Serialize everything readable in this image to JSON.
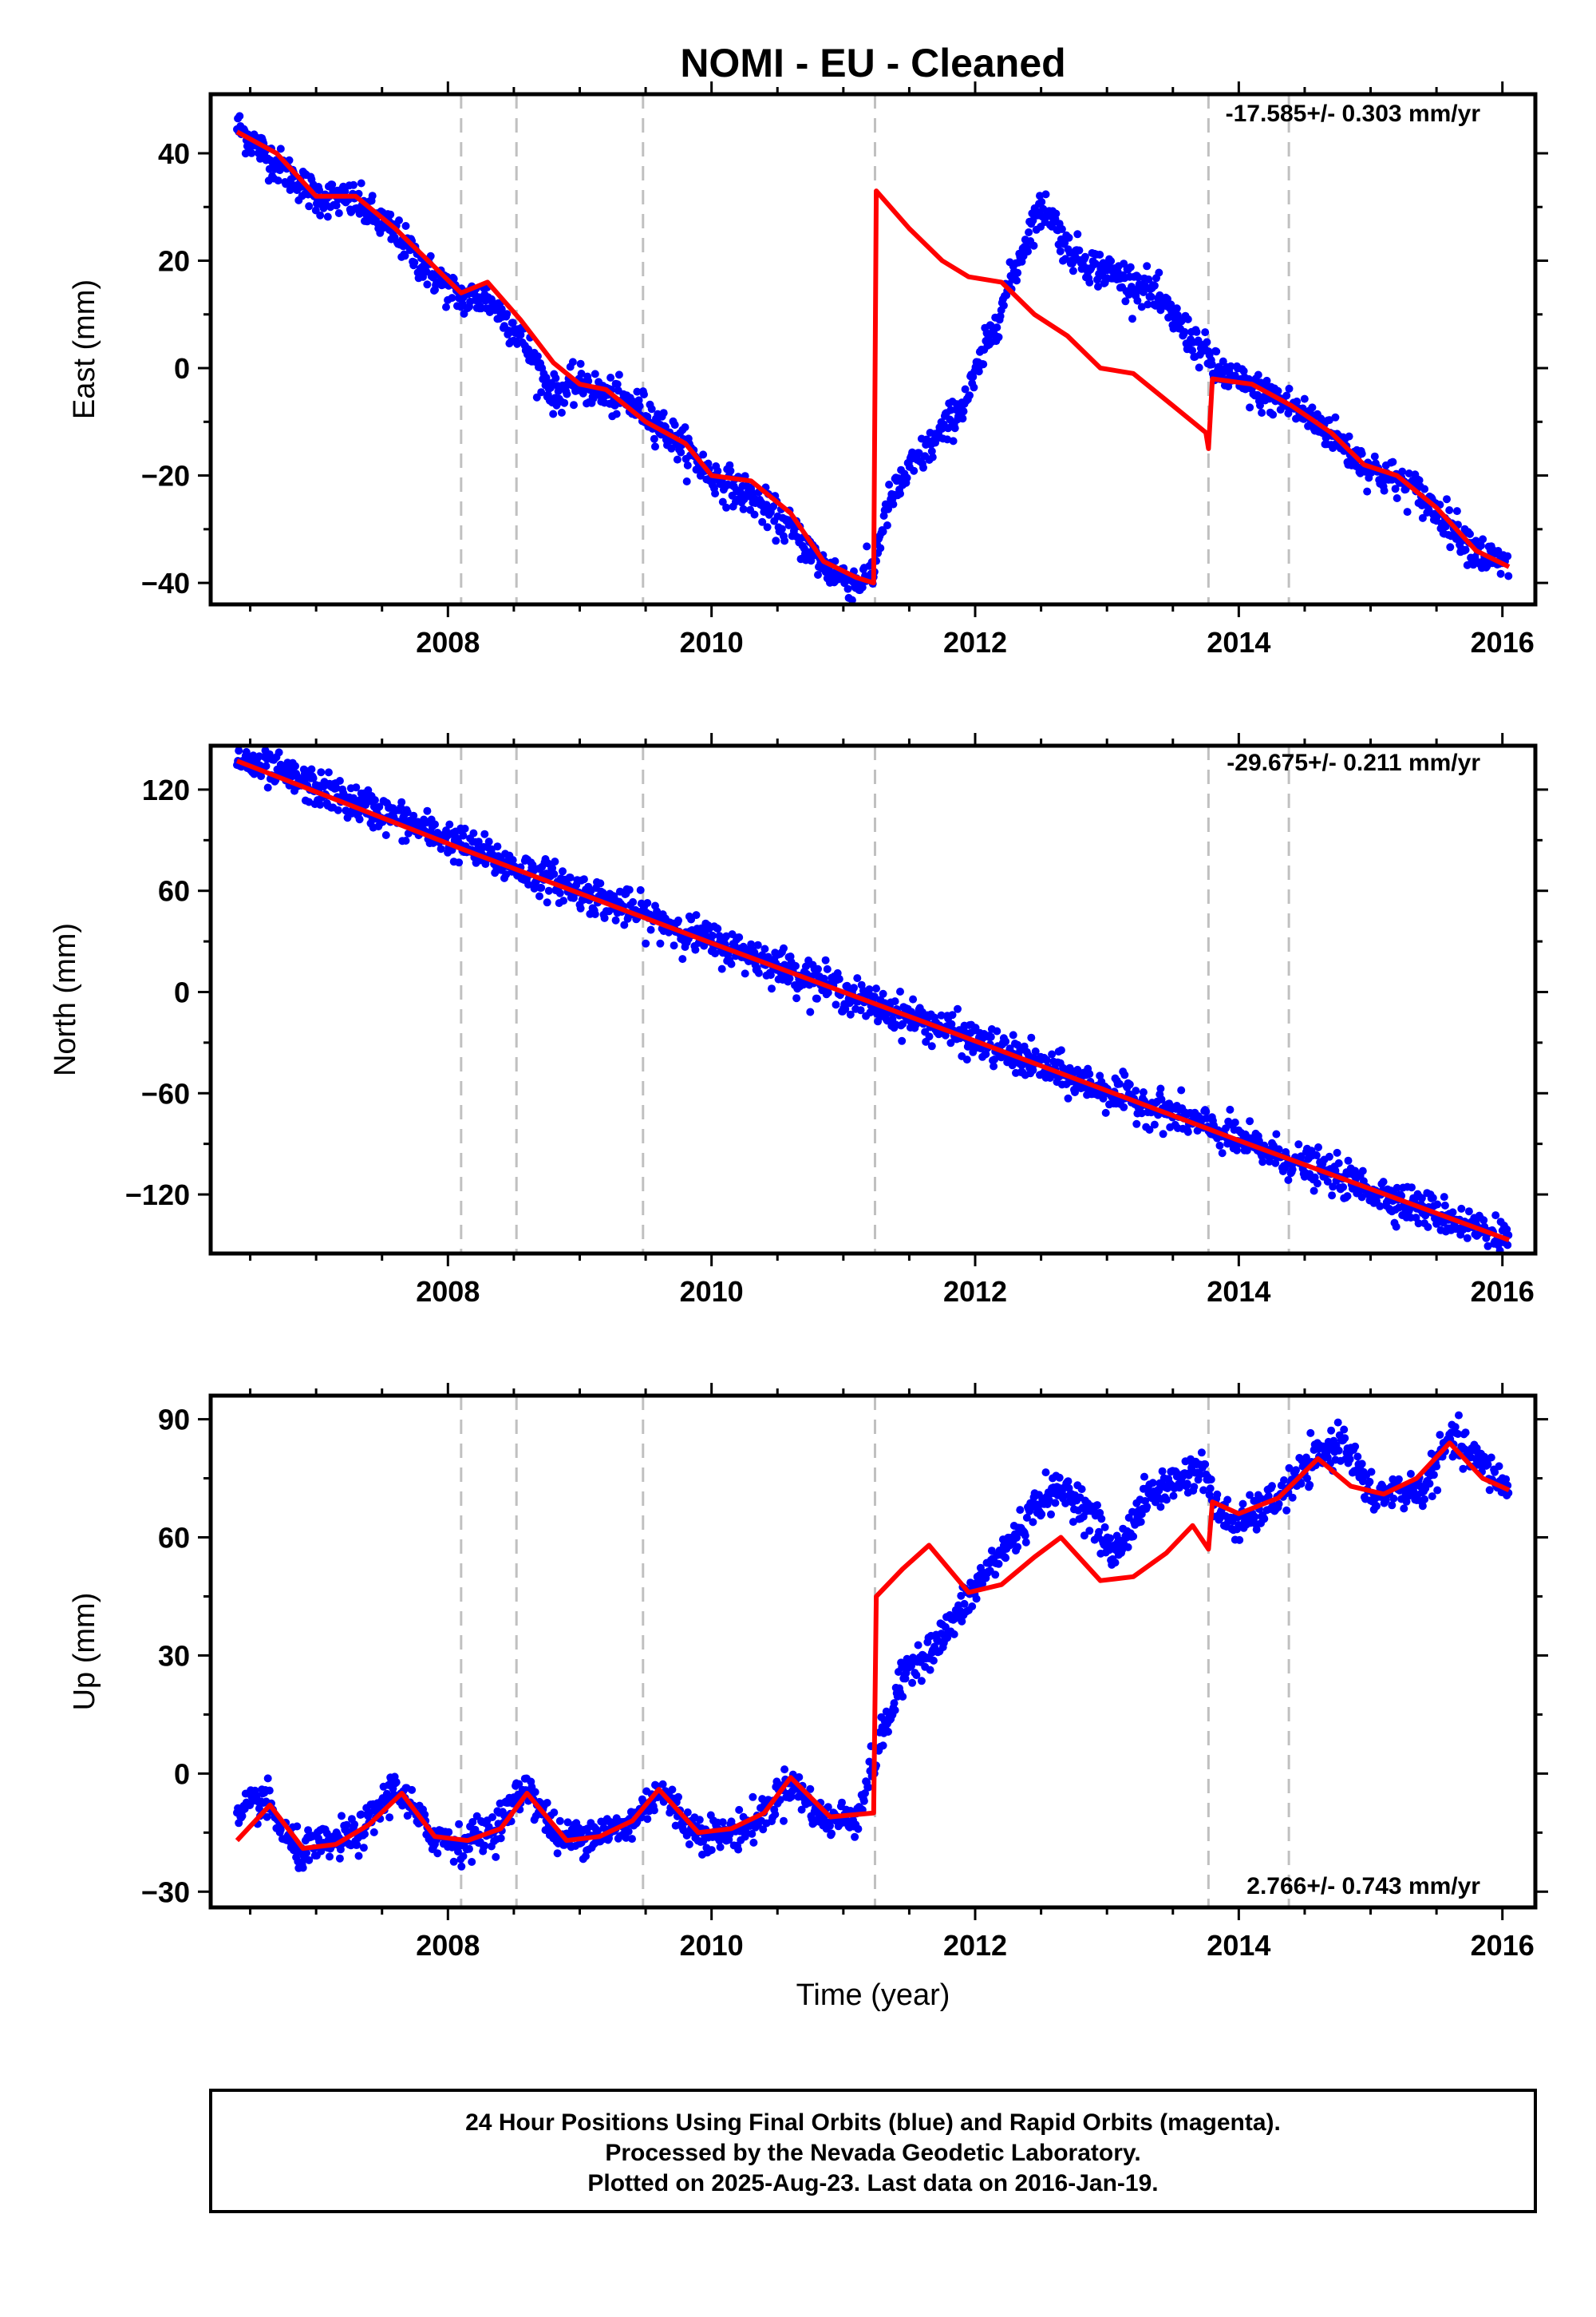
{
  "title": "NOMI  - EU - Cleaned",
  "caption": {
    "lines": [
      "24 Hour Positions Using Final Orbits (blue) and Rapid Orbits (magenta).",
      "Processed by the Nevada Geodetic Laboratory.",
      "Plotted on 2025-Aug-23. Last data on 2016-Jan-19."
    ]
  },
  "colors": {
    "final_orbits": "#0000ff",
    "model_fit": "#ff0000",
    "discontinuity_lines": "#c0c0c0",
    "frame": "#000000"
  },
  "chart_data": [
    {
      "type": "scatter",
      "panel": "east",
      "ylabel": "East (mm)",
      "xlabel": "",
      "rate": "-17.585+/- 0.303 mm/yr",
      "xlim": [
        2006.2,
        2016.25
      ],
      "ylim": [
        -44,
        51
      ],
      "yticks": [
        -40,
        -20,
        0,
        20,
        40
      ],
      "ytick_labels": [
        "−40",
        "−20",
        "0",
        "20",
        "40"
      ],
      "xticks": [
        2008,
        2010,
        2012,
        2014,
        2016
      ],
      "xtick_labels": [
        "2008",
        "2010",
        "2012",
        "2014",
        "2016"
      ],
      "discontinuities": [
        2008.1,
        2008.52,
        2009.48,
        2011.24,
        2013.77,
        2014.38
      ],
      "observations": {
        "x": [
          2006.4,
          2006.7,
          2007.0,
          2007.3,
          2007.6,
          2007.85,
          2008.1,
          2008.3,
          2008.55,
          2008.8,
          2009.0,
          2009.2,
          2009.5,
          2009.8,
          2010.0,
          2010.3,
          2010.6,
          2010.85,
          2011.1,
          2011.23,
          2011.27,
          2011.35,
          2011.5,
          2011.75,
          2011.95,
          2012.1,
          2012.3,
          2012.45,
          2012.55,
          2012.7,
          2012.9,
          2013.1,
          2013.3,
          2013.55,
          2013.77,
          2013.8,
          2014.1,
          2014.4,
          2014.7,
          2014.9,
          2015.1,
          2015.3,
          2015.6,
          2015.85,
          2016.05
        ],
        "y": [
          45,
          38,
          32,
          31,
          25,
          18,
          13,
          13,
          6,
          -5,
          -3,
          -5,
          -8,
          -15,
          -20,
          -24,
          -30,
          -37,
          -40,
          -38,
          -32,
          -25,
          -19,
          -12,
          -5,
          5,
          18,
          28,
          30,
          22,
          19,
          17,
          15,
          8,
          2,
          0,
          -4,
          -7,
          -12,
          -17,
          -20,
          -22,
          -29,
          -35,
          -37
        ]
      },
      "model": {
        "x": [
          2006.4,
          2006.7,
          2007.0,
          2007.3,
          2007.6,
          2007.85,
          2008.1,
          2008.3,
          2008.55,
          2008.8,
          2009.0,
          2009.2,
          2009.5,
          2009.8,
          2010.0,
          2010.3,
          2010.6,
          2010.85,
          2011.1,
          2011.23,
          2011.25,
          2011.5,
          2011.75,
          2011.95,
          2012.2,
          2012.45,
          2012.7,
          2012.95,
          2013.2,
          2013.5,
          2013.75,
          2013.77,
          2013.8,
          2014.1,
          2014.4,
          2014.7,
          2014.95,
          2015.2,
          2015.5,
          2015.8,
          2016.05
        ],
        "y": [
          44,
          40,
          32,
          32,
          26,
          20,
          14,
          16,
          9,
          1,
          -3,
          -4,
          -10,
          -14,
          -20,
          -21,
          -27,
          -36,
          -39,
          -40,
          33,
          26,
          20,
          17,
          16,
          10,
          6,
          0,
          -1,
          -7,
          -12,
          -15,
          -2,
          -3,
          -7,
          -12,
          -18,
          -20,
          -26,
          -34,
          -37
        ]
      }
    },
    {
      "type": "scatter",
      "panel": "north",
      "ylabel": "North (mm)",
      "xlabel": "",
      "rate": "-29.675+/- 0.211 mm/yr",
      "xlim": [
        2006.2,
        2016.25
      ],
      "ylim": [
        -155,
        146
      ],
      "yticks": [
        -120,
        -60,
        0,
        60,
        120
      ],
      "ytick_labels": [
        "−120",
        "−60",
        "0",
        "60",
        "120"
      ],
      "xticks": [
        2008,
        2010,
        2012,
        2014,
        2016
      ],
      "xtick_labels": [
        "2008",
        "2010",
        "2012",
        "2014",
        "2016"
      ],
      "discontinuities": [
        2008.1,
        2008.52,
        2009.48,
        2011.24,
        2013.77,
        2014.38
      ],
      "observations": {
        "x": [
          2006.4,
          2006.8,
          2007.2,
          2007.6,
          2008.0,
          2008.4,
          2008.8,
          2009.2,
          2009.6,
          2010.0,
          2010.4,
          2010.8,
          2011.2,
          2011.6,
          2012.0,
          2012.4,
          2012.8,
          2013.2,
          2013.6,
          2014.0,
          2014.4,
          2014.8,
          2015.2,
          2015.6,
          2016.05
        ],
        "y": [
          138,
          127,
          115,
          103,
          91,
          77,
          66,
          54,
          42,
          30,
          19,
          7,
          -7,
          -17,
          -29,
          -41,
          -53,
          -64,
          -75,
          -88,
          -100,
          -111,
          -123,
          -134,
          -147
        ]
      },
      "model": {
        "x": [
          2006.4,
          2008.1,
          2010.0,
          2012.0,
          2014.0,
          2016.05
        ],
        "y": [
          137,
          85,
          29,
          -29,
          -88,
          -147
        ]
      }
    },
    {
      "type": "scatter",
      "panel": "up",
      "ylabel": "Up (mm)",
      "xlabel": "Time (year)",
      "rate": "2.766+/- 0.743 mm/yr",
      "xlim": [
        2006.2,
        2016.25
      ],
      "ylim": [
        -34,
        96
      ],
      "yticks": [
        -30,
        0,
        30,
        60,
        90
      ],
      "ytick_labels": [
        "−30",
        "0",
        "30",
        "60",
        "90"
      ],
      "xticks": [
        2008,
        2010,
        2012,
        2014,
        2016
      ],
      "xtick_labels": [
        "2008",
        "2010",
        "2012",
        "2014",
        "2016"
      ],
      "discontinuities": [
        2008.1,
        2008.52,
        2009.48,
        2011.24,
        2013.77,
        2014.38
      ],
      "observations": {
        "x": [
          2006.4,
          2006.6,
          2006.85,
          2007.1,
          2007.35,
          2007.6,
          2007.85,
          2008.1,
          2008.35,
          2008.6,
          2008.85,
          2009.1,
          2009.35,
          2009.6,
          2009.85,
          2010.1,
          2010.35,
          2010.6,
          2010.85,
          2011.1,
          2011.3,
          2011.5,
          2011.7,
          2011.9,
          2012.1,
          2012.3,
          2012.5,
          2012.7,
          2012.9,
          2013.05,
          2013.3,
          2013.55,
          2013.75,
          2013.8,
          2014.0,
          2014.3,
          2014.6,
          2014.8,
          2015.0,
          2015.2,
          2015.4,
          2015.6,
          2015.8,
          2016.05
        ],
        "y": [
          -12,
          -6,
          -20,
          -18,
          -15,
          -3,
          -15,
          -18,
          -14,
          -3,
          -17,
          -15,
          -14,
          -4,
          -14,
          -16,
          -12,
          -2,
          -12,
          -11,
          10,
          28,
          32,
          42,
          52,
          60,
          70,
          72,
          65,
          55,
          70,
          75,
          78,
          68,
          63,
          70,
          80,
          85,
          70,
          72,
          72,
          85,
          80,
          72
        ]
      },
      "model": {
        "x": [
          2006.4,
          2006.65,
          2006.9,
          2007.15,
          2007.4,
          2007.65,
          2007.9,
          2008.15,
          2008.4,
          2008.6,
          2008.9,
          2009.15,
          2009.4,
          2009.6,
          2009.9,
          2010.15,
          2010.4,
          2010.6,
          2010.9,
          2011.23,
          2011.25,
          2011.45,
          2011.65,
          2011.95,
          2012.2,
          2012.45,
          2012.65,
          2012.95,
          2013.2,
          2013.45,
          2013.65,
          2013.77,
          2013.8,
          2014.0,
          2014.3,
          2014.6,
          2014.85,
          2015.1,
          2015.35,
          2015.6,
          2015.85,
          2016.05
        ],
        "y": [
          -17,
          -8,
          -19,
          -18,
          -13,
          -5,
          -16,
          -17,
          -14,
          -5,
          -17,
          -16,
          -12,
          -4,
          -15,
          -14,
          -10,
          -1,
          -11,
          -10,
          45,
          52,
          58,
          46,
          48,
          55,
          60,
          49,
          50,
          56,
          63,
          57,
          69,
          66,
          70,
          80,
          73,
          71,
          75,
          84,
          75,
          72
        ]
      }
    }
  ]
}
